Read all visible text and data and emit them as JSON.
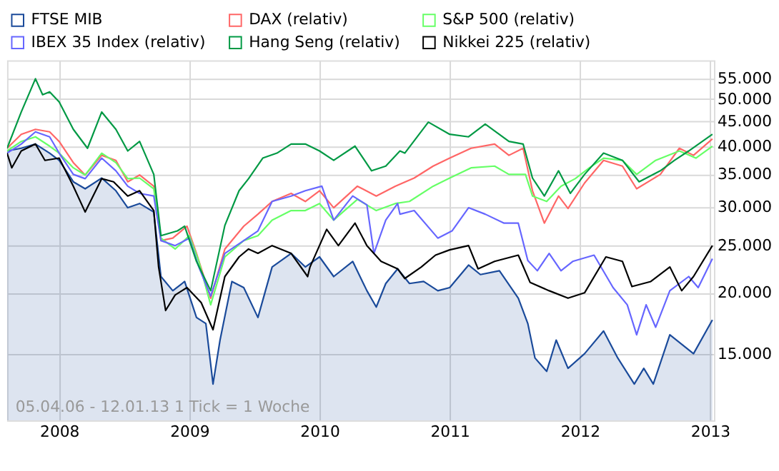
{
  "chart_data": {
    "type": "line",
    "log": true,
    "grid": true,
    "legend": "top",
    "xlim": [
      2007.6,
      2013.03
    ],
    "xticks": [
      2008,
      2009,
      2010,
      2011,
      2012,
      2013
    ],
    "ylim": [
      10950,
      60000
    ],
    "yticks": [
      {
        "value": 15000,
        "label": "15.000"
      },
      {
        "value": 20000,
        "label": "20.000"
      },
      {
        "value": 25000,
        "label": "25.000"
      },
      {
        "value": 30000,
        "label": "30.000"
      },
      {
        "value": 35000,
        "label": "35.000"
      },
      {
        "value": 40000,
        "label": "40.000"
      },
      {
        "value": 45000,
        "label": "45.000"
      },
      {
        "value": 50000,
        "label": "50.000"
      },
      {
        "value": 55000,
        "label": "55.000"
      }
    ],
    "annotations": [
      "05.04.06 - 12.01.13   1 Tick = 1 Woche"
    ],
    "series": [
      {
        "name": "FTSE MIB",
        "type": "area",
        "color": "#1a4a9a",
        "x": [
          2007.6,
          2007.709,
          2007.818,
          2007.927,
          2008.0,
          2008.109,
          2008.2,
          2008.327,
          2008.436,
          2008.527,
          2008.618,
          2008.727,
          2008.782,
          2008.873,
          2008.964,
          2009.055,
          2009.127,
          2009.182,
          2009.236,
          2009.327,
          2009.418,
          2009.527,
          2009.636,
          2009.782,
          2009.891,
          2010.0,
          2010.109,
          2010.255,
          2010.364,
          2010.436,
          2010.509,
          2010.6,
          2010.691,
          2010.8,
          2010.909,
          2011.0,
          2011.145,
          2011.236,
          2011.382,
          2011.527,
          2011.6,
          2011.655,
          2011.745,
          2011.818,
          2011.909,
          2012.036,
          2012.182,
          2012.291,
          2012.418,
          2012.491,
          2012.564,
          2012.691,
          2012.873,
          2013.018
        ],
        "values": [
          39100,
          39600,
          40400,
          38700,
          37400,
          33800,
          32700,
          34400,
          32400,
          29900,
          30500,
          29300,
          21600,
          20200,
          21100,
          17800,
          17300,
          13000,
          16000,
          21100,
          20500,
          17800,
          22600,
          24100,
          22600,
          23700,
          21600,
          23200,
          20200,
          18700,
          20900,
          22400,
          20900,
          21100,
          20200,
          20500,
          22800,
          21800,
          22200,
          19500,
          17300,
          14700,
          13800,
          16000,
          14000,
          15000,
          16700,
          14700,
          13000,
          14000,
          13000,
          16400,
          15000,
          17600
        ]
      },
      {
        "name": "DAX (relativ)",
        "color": "#ff6666",
        "x": [
          2007.6,
          2007.709,
          2007.818,
          2007.927,
          2008.0,
          2008.109,
          2008.2,
          2008.327,
          2008.436,
          2008.527,
          2008.618,
          2008.727,
          2008.782,
          2008.873,
          2008.982,
          2009.055,
          2009.164,
          2009.273,
          2009.418,
          2009.527,
          2009.636,
          2009.782,
          2009.891,
          2010.0,
          2010.109,
          2010.291,
          2010.436,
          2010.582,
          2010.727,
          2010.873,
          2011.0,
          2011.164,
          2011.345,
          2011.455,
          2011.564,
          2011.636,
          2011.727,
          2011.836,
          2011.909,
          2012.036,
          2012.182,
          2012.327,
          2012.436,
          2012.618,
          2012.764,
          2012.873,
          2013.018
        ],
        "values": [
          39600,
          42300,
          43300,
          42800,
          40900,
          37000,
          34900,
          38300,
          37400,
          33800,
          34900,
          33100,
          25600,
          25900,
          27400,
          24100,
          19500,
          24600,
          27400,
          29000,
          30800,
          32000,
          30800,
          32400,
          29900,
          33100,
          31600,
          33100,
          34400,
          36400,
          37800,
          39600,
          40400,
          38300,
          39600,
          32400,
          27800,
          31600,
          29800,
          33600,
          37400,
          36400,
          32700,
          35000,
          39600,
          38300,
          41400
        ]
      },
      {
        "name": "S&P 500 (relativ)",
        "color": "#66ff66",
        "x": [
          2007.6,
          2007.709,
          2007.818,
          2007.927,
          2008.0,
          2008.109,
          2008.2,
          2008.327,
          2008.436,
          2008.527,
          2008.618,
          2008.727,
          2008.782,
          2008.891,
          2009.0,
          2009.073,
          2009.164,
          2009.273,
          2009.418,
          2009.527,
          2009.636,
          2009.782,
          2009.891,
          2010.0,
          2010.109,
          2010.291,
          2010.436,
          2010.582,
          2010.691,
          2010.873,
          2011.0,
          2011.164,
          2011.345,
          2011.455,
          2011.582,
          2011.636,
          2011.745,
          2011.855,
          2011.964,
          2012.073,
          2012.182,
          2012.327,
          2012.436,
          2012.582,
          2012.764,
          2012.891,
          2013.018
        ],
        "values": [
          39100,
          40900,
          41800,
          40000,
          38700,
          36100,
          34900,
          38700,
          37000,
          34300,
          34400,
          32700,
          25900,
          24600,
          26200,
          23200,
          18900,
          23700,
          25600,
          26200,
          28200,
          29500,
          29500,
          30500,
          28200,
          31100,
          29500,
          30500,
          30800,
          33100,
          34400,
          36100,
          36400,
          35000,
          35000,
          31600,
          30800,
          33100,
          34300,
          36100,
          37800,
          37400,
          35000,
          37400,
          39100,
          37800,
          40000
        ]
      },
      {
        "name": "IBEX 35 Index (relativ)",
        "color": "#6666ff",
        "x": [
          2007.6,
          2007.709,
          2007.818,
          2007.927,
          2008.0,
          2008.109,
          2008.2,
          2008.327,
          2008.436,
          2008.527,
          2008.618,
          2008.727,
          2008.782,
          2008.891,
          2009.0,
          2009.073,
          2009.164,
          2009.273,
          2009.418,
          2009.527,
          2009.636,
          2009.782,
          2009.891,
          2010.018,
          2010.109,
          2010.255,
          2010.364,
          2010.418,
          2010.509,
          2010.6,
          2010.618,
          2010.727,
          2010.909,
          2011.018,
          2011.145,
          2011.273,
          2011.418,
          2011.527,
          2011.6,
          2011.673,
          2011.764,
          2011.855,
          2011.945,
          2012.109,
          2012.255,
          2012.364,
          2012.436,
          2012.509,
          2012.582,
          2012.691,
          2012.836,
          2012.909,
          2013.018
        ],
        "values": [
          38700,
          40400,
          42800,
          41800,
          38700,
          35000,
          34300,
          37800,
          35600,
          33100,
          32000,
          31600,
          25600,
          25000,
          25900,
          22600,
          19700,
          24100,
          25600,
          26800,
          30800,
          31600,
          32400,
          33100,
          28200,
          31600,
          30300,
          24100,
          28200,
          30500,
          29000,
          29500,
          25900,
          26800,
          29900,
          29000,
          27800,
          27800,
          23300,
          22200,
          24100,
          22200,
          23200,
          23900,
          20500,
          18900,
          16400,
          18900,
          17000,
          20200,
          21600,
          20500,
          23500
        ]
      },
      {
        "name": "Hang Seng (relativ)",
        "color": "#009944",
        "x": [
          2007.6,
          2007.709,
          2007.818,
          2007.873,
          2007.927,
          2008.0,
          2008.109,
          2008.218,
          2008.327,
          2008.436,
          2008.527,
          2008.618,
          2008.727,
          2008.782,
          2008.909,
          2008.964,
          2009.055,
          2009.164,
          2009.273,
          2009.382,
          2009.455,
          2009.564,
          2009.673,
          2009.782,
          2009.891,
          2010.0,
          2010.109,
          2010.273,
          2010.4,
          2010.509,
          2010.618,
          2010.655,
          2010.836,
          2011.0,
          2011.145,
          2011.273,
          2011.455,
          2011.564,
          2011.636,
          2011.727,
          2011.836,
          2011.927,
          2012.036,
          2012.182,
          2012.327,
          2012.455,
          2012.618,
          2012.727,
          2012.836,
          2013.018
        ],
        "values": [
          39600,
          47000,
          55000,
          51000,
          51700,
          49300,
          43300,
          39600,
          47000,
          43300,
          39100,
          40900,
          35000,
          26200,
          26800,
          27400,
          23200,
          20200,
          27500,
          32400,
          34300,
          37800,
          38700,
          40400,
          40400,
          39100,
          37400,
          40000,
          35600,
          36400,
          39100,
          38700,
          44800,
          42300,
          41800,
          44400,
          40900,
          40400,
          34400,
          31600,
          35600,
          32000,
          35000,
          38700,
          37400,
          33800,
          35600,
          37400,
          39100,
          42300
        ]
      },
      {
        "name": "Nikkei 225 (relativ)",
        "color": "#000000",
        "x": [
          2007.6,
          2007.636,
          2007.709,
          2007.818,
          2007.891,
          2008.0,
          2008.109,
          2008.2,
          2008.327,
          2008.418,
          2008.527,
          2008.618,
          2008.727,
          2008.764,
          2008.818,
          2008.891,
          2008.982,
          2009.091,
          2009.182,
          2009.273,
          2009.382,
          2009.455,
          2009.527,
          2009.636,
          2009.782,
          2009.909,
          2009.927,
          2010.055,
          2010.145,
          2010.273,
          2010.364,
          2010.473,
          2010.6,
          2010.655,
          2010.782,
          2010.891,
          2011.0,
          2011.145,
          2011.218,
          2011.345,
          2011.527,
          2011.618,
          2011.764,
          2011.909,
          2012.036,
          2012.2,
          2012.327,
          2012.4,
          2012.545,
          2012.691,
          2012.782,
          2012.873,
          2013.018
        ],
        "values": [
          38700,
          36100,
          39100,
          40400,
          37400,
          37800,
          33100,
          29300,
          34300,
          33800,
          31600,
          32400,
          29500,
          22600,
          18400,
          19800,
          20500,
          19100,
          16800,
          21600,
          23700,
          24600,
          24100,
          25000,
          24100,
          21600,
          22600,
          27000,
          25000,
          27800,
          25000,
          23200,
          22400,
          21400,
          22600,
          23900,
          24500,
          25000,
          22400,
          23200,
          23900,
          21000,
          20200,
          19500,
          20000,
          23700,
          23200,
          20600,
          21100,
          22600,
          20200,
          21600,
          25000
        ]
      }
    ]
  }
}
